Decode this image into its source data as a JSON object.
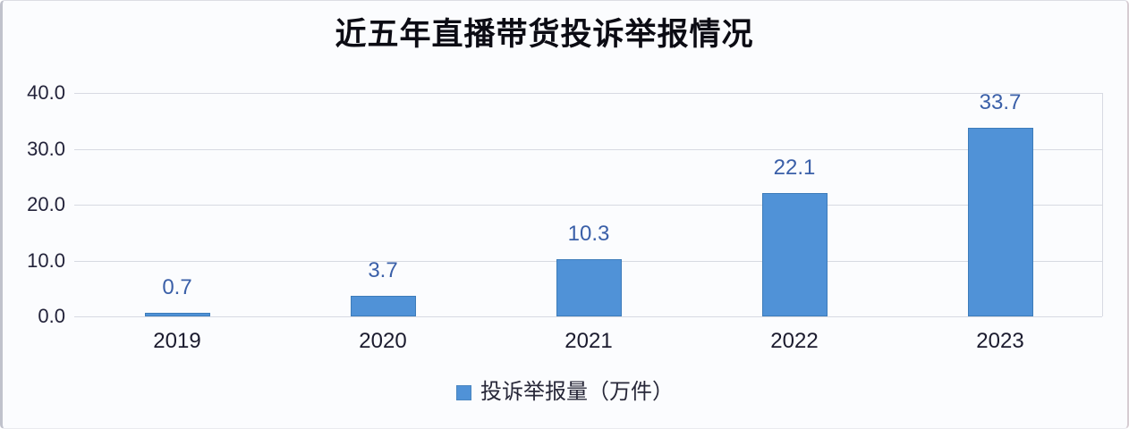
{
  "title": "近五年直播带货投诉举报情况",
  "colors": {
    "background": "#fbfcfe",
    "bar_fill": "#5092d7",
    "bar_border": "#3d7cba",
    "gridline": "#d7dae2",
    "value_label": "#3a5fa8",
    "axis_tick_text": "#23233a",
    "x_axis_text": "#1b1b2e",
    "title_text": "#0c0c14",
    "legend_text": "#272738"
  },
  "legend": {
    "label": "投诉举报量（万件）"
  },
  "chart_data": {
    "type": "bar",
    "title": "近五年直播带货投诉举报情况",
    "categories": [
      "2019",
      "2020",
      "2021",
      "2022",
      "2023"
    ],
    "values": [
      0.7,
      3.7,
      10.3,
      22.1,
      33.7
    ],
    "data_labels": [
      "0.7",
      "3.7",
      "10.3",
      "22.1",
      "33.7"
    ],
    "series_name": "投诉举报量（万件）",
    "xlabel": "",
    "ylabel": "",
    "ylim": [
      0,
      40
    ],
    "ytick_values": [
      0,
      10,
      20,
      30,
      40
    ],
    "ytick_labels": [
      "0.0",
      "10.0",
      "20.0",
      "30.0",
      "40.0"
    ],
    "grid": "horizontal",
    "legend_position": "bottom"
  }
}
